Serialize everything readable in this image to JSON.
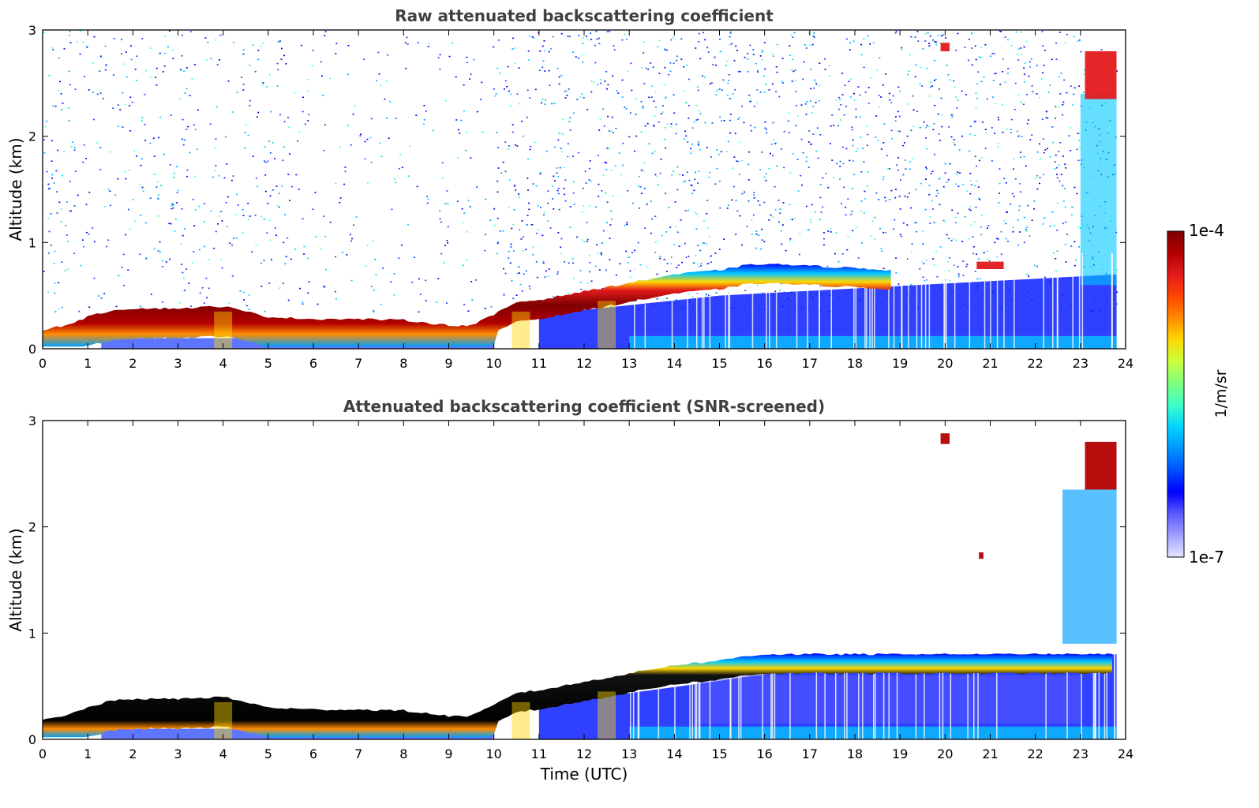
{
  "chart_data": [
    {
      "type": "heatmap",
      "title": "Raw attenuated backscattering coefficient",
      "xlabel": "",
      "ylabel": "Altitude (km)",
      "xlim": [
        0,
        24
      ],
      "ylim": [
        0,
        3
      ],
      "xticks": [
        "0",
        "1",
        "2",
        "3",
        "4",
        "5",
        "6",
        "7",
        "8",
        "9",
        "10",
        "11",
        "12",
        "13",
        "14",
        "15",
        "16",
        "17",
        "18",
        "19",
        "20",
        "21",
        "22",
        "23",
        "24"
      ],
      "yticks": [
        "0",
        "1",
        "2",
        "3"
      ],
      "layer_top_km": [
        [
          0,
          0.18
        ],
        [
          0.5,
          0.22
        ],
        [
          1,
          0.3
        ],
        [
          1.5,
          0.36
        ],
        [
          2,
          0.38
        ],
        [
          3,
          0.38
        ],
        [
          4,
          0.4
        ],
        [
          5,
          0.3
        ],
        [
          6,
          0.28
        ],
        [
          7,
          0.28
        ],
        [
          8,
          0.27
        ],
        [
          9,
          0.22
        ],
        [
          9.5,
          0.22
        ],
        [
          10,
          0.32
        ],
        [
          10.5,
          0.44
        ],
        [
          11,
          0.46
        ],
        [
          12,
          0.54
        ],
        [
          13,
          0.62
        ],
        [
          14,
          0.7
        ],
        [
          15,
          0.74
        ],
        [
          15.5,
          0.78
        ],
        [
          16,
          0.8
        ],
        [
          17,
          0.78
        ],
        [
          18,
          0.76
        ],
        [
          18.8,
          0.74
        ]
      ],
      "cloud_patches": [
        {
          "time_start": 23.1,
          "time_end": 23.8,
          "alt_bottom_km": 2.35,
          "alt_top_km": 2.8
        },
        {
          "time_start": 19.9,
          "time_end": 20.1,
          "alt_bottom_km": 2.8,
          "alt_top_km": 2.88
        },
        {
          "time_start": 20.7,
          "time_end": 21.3,
          "alt_bottom_km": 0.75,
          "alt_top_km": 0.82
        }
      ]
    },
    {
      "type": "heatmap",
      "title": "Attenuated backscattering coefficient (SNR-screened)",
      "xlabel": "Time (UTC)",
      "ylabel": "Altitude (km)",
      "xlim": [
        0,
        24
      ],
      "ylim": [
        0,
        3
      ],
      "xticks": [
        "0",
        "1",
        "2",
        "3",
        "4",
        "5",
        "6",
        "7",
        "8",
        "9",
        "10",
        "11",
        "12",
        "13",
        "14",
        "15",
        "16",
        "17",
        "18",
        "19",
        "20",
        "21",
        "22",
        "23",
        "24"
      ],
      "yticks": [
        "0",
        "1",
        "2",
        "3"
      ],
      "layer_top_km": [
        [
          0,
          0.18
        ],
        [
          0.5,
          0.22
        ],
        [
          1,
          0.3
        ],
        [
          1.5,
          0.36
        ],
        [
          2,
          0.38
        ],
        [
          3,
          0.38
        ],
        [
          4,
          0.4
        ],
        [
          5,
          0.3
        ],
        [
          6,
          0.28
        ],
        [
          7,
          0.28
        ],
        [
          8,
          0.27
        ],
        [
          9,
          0.22
        ],
        [
          9.5,
          0.22
        ],
        [
          10,
          0.32
        ],
        [
          10.5,
          0.44
        ],
        [
          11,
          0.46
        ],
        [
          12,
          0.54
        ],
        [
          13,
          0.62
        ],
        [
          14,
          0.7
        ],
        [
          15,
          0.74
        ],
        [
          15.5,
          0.78
        ],
        [
          16,
          0.8
        ],
        [
          17,
          0.8
        ],
        [
          18,
          0.8
        ],
        [
          19,
          0.8
        ],
        [
          20,
          0.8
        ],
        [
          21,
          0.8
        ],
        [
          22,
          0.8
        ],
        [
          23,
          0.8
        ],
        [
          23.8,
          0.8
        ]
      ],
      "cloud_patches": [
        {
          "time_start": 23.1,
          "time_end": 23.8,
          "alt_bottom_km": 2.35,
          "alt_top_km": 2.8
        },
        {
          "time_start": 19.9,
          "time_end": 20.1,
          "alt_bottom_km": 2.78,
          "alt_top_km": 2.88
        },
        {
          "time_start": 20.75,
          "time_end": 20.85,
          "alt_bottom_km": 1.7,
          "alt_top_km": 1.76
        },
        {
          "time_start": 22.6,
          "time_end": 23.8,
          "alt_bottom_km": 0.9,
          "alt_top_km": 2.35
        }
      ]
    }
  ],
  "colorbar": {
    "label": "1/m/sr",
    "max_label": "1e-4",
    "min_label": "1e-7",
    "min": 1e-07,
    "max": 0.0001,
    "scale": "log",
    "colors": [
      "#7f0000",
      "#b30000",
      "#e31a1c",
      "#ff4500",
      "#ff8c00",
      "#ffd700",
      "#c8ff3c",
      "#7fff7f",
      "#3cffc8",
      "#00d4ff",
      "#0096ff",
      "#0050ff",
      "#0000ff",
      "#5a5aff",
      "#a0a0ff",
      "#e6e6ff"
    ]
  }
}
